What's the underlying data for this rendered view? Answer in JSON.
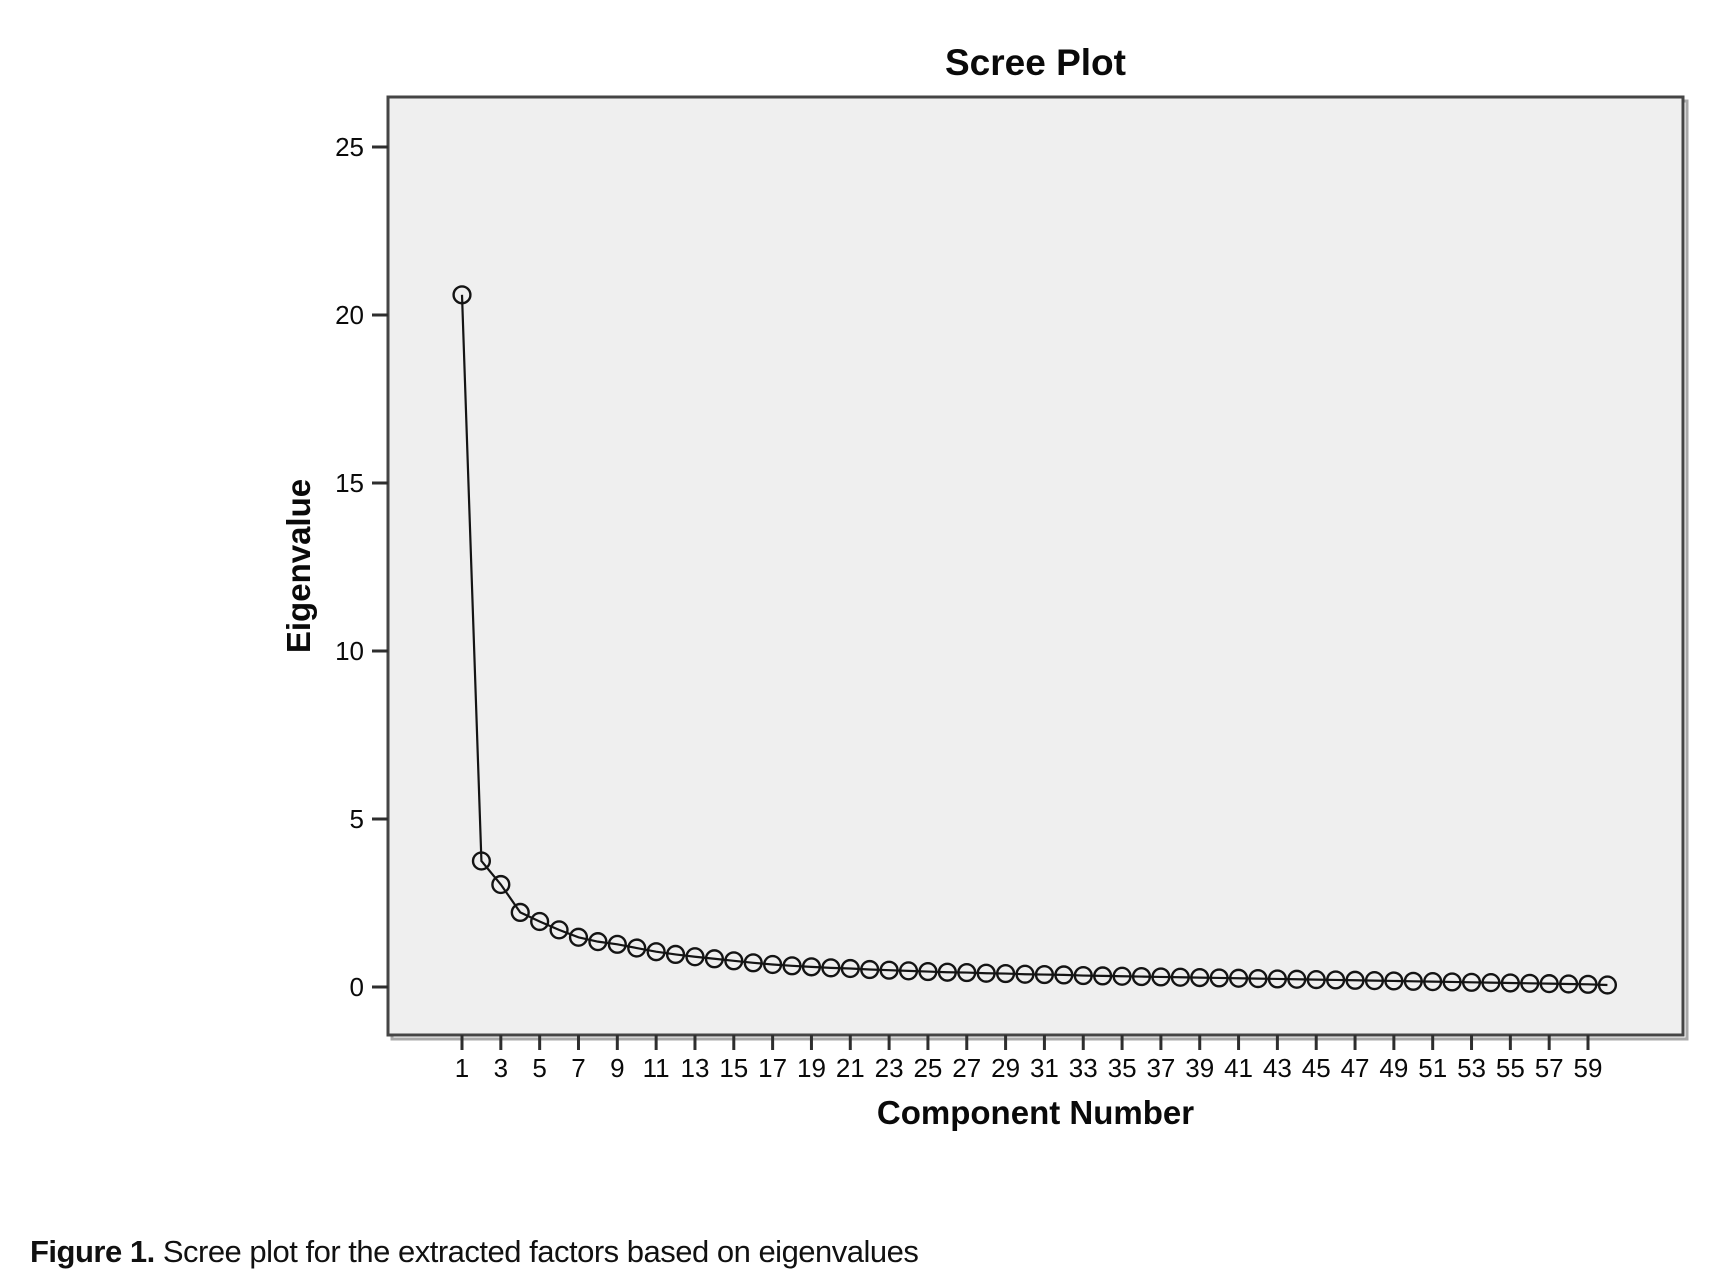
{
  "chart_data": {
    "type": "line",
    "title": "Scree Plot",
    "xlabel": "Component Number",
    "ylabel": "Eigenvalue",
    "x": [
      1,
      2,
      3,
      4,
      5,
      6,
      7,
      8,
      9,
      10,
      11,
      12,
      13,
      14,
      15,
      16,
      17,
      18,
      19,
      20,
      21,
      22,
      23,
      24,
      25,
      26,
      27,
      28,
      29,
      30,
      31,
      32,
      33,
      34,
      35,
      36,
      37,
      38,
      39,
      40,
      41,
      42,
      43,
      44,
      45,
      46,
      47,
      48,
      49,
      50,
      51,
      52,
      53,
      54,
      55,
      56,
      57,
      58,
      59,
      60
    ],
    "series": [
      {
        "name": "Eigenvalues",
        "marker": "open-circle",
        "values": [
          20.6,
          3.75,
          3.05,
          2.22,
          1.95,
          1.7,
          1.48,
          1.35,
          1.27,
          1.16,
          1.05,
          0.97,
          0.9,
          0.84,
          0.78,
          0.72,
          0.67,
          0.63,
          0.6,
          0.57,
          0.55,
          0.52,
          0.5,
          0.48,
          0.46,
          0.44,
          0.43,
          0.41,
          0.4,
          0.38,
          0.37,
          0.36,
          0.34,
          0.33,
          0.32,
          0.31,
          0.3,
          0.29,
          0.28,
          0.27,
          0.26,
          0.25,
          0.24,
          0.23,
          0.22,
          0.21,
          0.2,
          0.19,
          0.18,
          0.17,
          0.16,
          0.15,
          0.14,
          0.13,
          0.12,
          0.11,
          0.1,
          0.09,
          0.08,
          0.06
        ]
      }
    ],
    "x_tick_labels": [
      "1",
      "3",
      "5",
      "7",
      "9",
      "11",
      "13",
      "15",
      "17",
      "19",
      "21",
      "23",
      "25",
      "27",
      "29",
      "31",
      "33",
      "35",
      "37",
      "39",
      "41",
      "43",
      "45",
      "47",
      "49",
      "51",
      "53",
      "55",
      "57",
      "59"
    ],
    "y_tick_values": [
      0,
      5,
      10,
      15,
      20,
      25
    ],
    "y_tick_labels": [
      "0",
      "5",
      "10",
      "15",
      "20",
      "25"
    ],
    "ylim": [
      -1.4,
      26.5
    ],
    "xlim_components": [
      1,
      60
    ],
    "grid": false,
    "legend": "none",
    "plot_bg_color": "#efefef",
    "frame_color": "#454545",
    "shadow_color": "#a9a9a9",
    "line_color": "#141414",
    "tick_color": "#2e2e2e"
  },
  "caption": {
    "label": "Figure 1.",
    "text": " Scree plot for the extracted factors based on eigenvalues"
  }
}
